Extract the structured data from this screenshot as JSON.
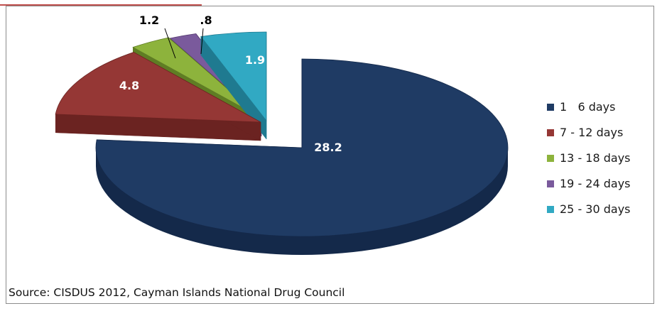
{
  "chart_data": {
    "type": "pie",
    "style": "3d-exploded",
    "categories": [
      "1   6 days",
      "7 - 12 days",
      "13 - 18 days",
      "19 - 24 days",
      "25 - 30 days"
    ],
    "values": [
      28.2,
      4.8,
      1.2,
      0.8,
      1.9
    ],
    "value_labels": [
      "28.2",
      "4.8",
      "1.2",
      ".8",
      "1.9"
    ],
    "colors": [
      "#1f3b64",
      "#953735",
      "#8db33c",
      "#7a5a9c",
      "#31a9c3"
    ],
    "side_colors": [
      "#14294a",
      "#6b2321",
      "#5f7d24",
      "#53386e",
      "#1f7a90"
    ],
    "label_colors": [
      "#ffffff",
      "#ffffff",
      "#000000",
      "#000000",
      "#ffffff"
    ],
    "legend_position": "right"
  },
  "source": "Source: CISDUS 2012, Cayman Islands National Drug Council"
}
